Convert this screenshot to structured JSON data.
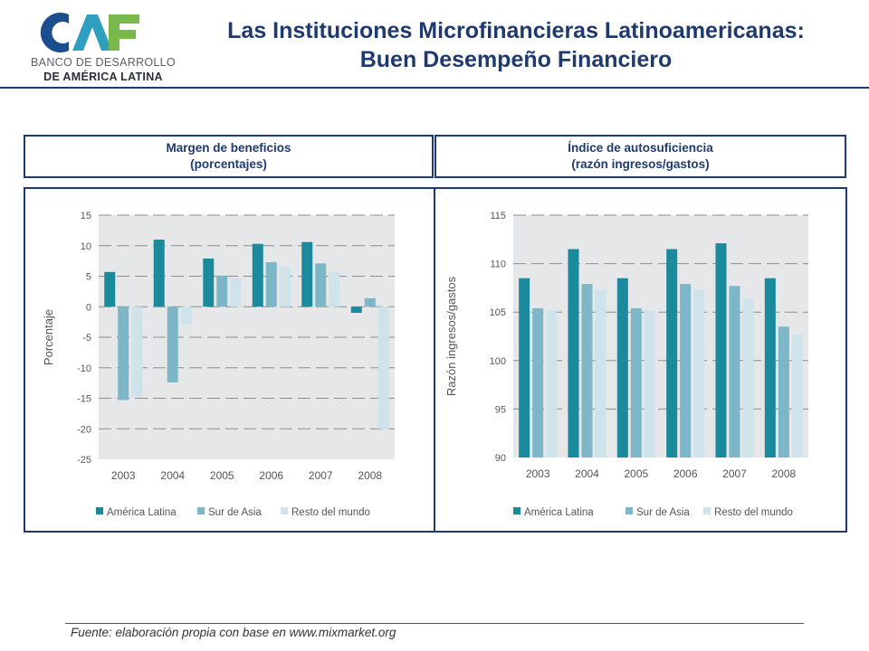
{
  "logo": {
    "name": "CAF",
    "line1": "BANCO DE DESARROLLO",
    "line2": "DE AMÉRICA LATINA",
    "colors": {
      "c": "#1a4e8f",
      "a": "#2f9fc0",
      "f": "#79b84a"
    }
  },
  "title": {
    "line1": "Las Instituciones Microfinancieras Latinoamericanas:",
    "line2": "Buen Desempeño Financiero"
  },
  "footer": {
    "source": "Fuente: elaboración propia con base en www.mixmarket.org"
  },
  "colors": {
    "america_latina": "#1b8a9c",
    "sur_de_asia": "#7db7c7",
    "resto_del_mundo": "#cfe3ea",
    "plot_bg": "#e6e7e8",
    "grid": "#8e8e8e",
    "frame": "#1e3a6e"
  },
  "chart_data": [
    {
      "type": "bar",
      "header_line1": "Margen de beneficios",
      "header_line2": "(porcentajes)",
      "ylabel": "Porcentaje",
      "ylim": [
        -25,
        15
      ],
      "yticks": [
        15,
        10,
        5,
        0,
        -5,
        -10,
        -15,
        -20,
        -25
      ],
      "grid": true,
      "legend_position": "bottom",
      "categories": [
        "2003",
        "2004",
        "2005",
        "2006",
        "2007",
        "2008"
      ],
      "series": [
        {
          "name": "América Latina",
          "color": "#1b8a9c",
          "values": [
            5.7,
            11.0,
            7.9,
            10.3,
            10.6,
            -1.0
          ]
        },
        {
          "name": "Sur de Asia",
          "color": "#7db7c7",
          "values": [
            -15.3,
            -12.4,
            5.1,
            7.3,
            7.1,
            1.4
          ]
        },
        {
          "name": "Resto del mundo",
          "color": "#cfe3ea",
          "values": [
            -14.8,
            -2.9,
            4.6,
            6.5,
            5.7,
            -20.0
          ]
        }
      ]
    },
    {
      "type": "bar",
      "header_line1": "Índice de autosuficiencia",
      "header_line2": "(razón ingresos/gastos)",
      "ylabel": "Razón ingresos/gastos",
      "ylim": [
        90,
        115
      ],
      "yticks": [
        115,
        110,
        105,
        100,
        95,
        90
      ],
      "grid": true,
      "legend_position": "bottom",
      "categories": [
        "2003",
        "2004",
        "2005",
        "2006",
        "2007",
        "2008"
      ],
      "series": [
        {
          "name": "América Latina",
          "color": "#1b8a9c",
          "values": [
            108.5,
            111.5,
            108.5,
            111.5,
            112.1,
            108.5
          ]
        },
        {
          "name": "Sur de Asia",
          "color": "#7db7c7",
          "values": [
            105.4,
            107.9,
            105.4,
            107.9,
            107.7,
            103.5
          ]
        },
        {
          "name": "Resto del mundo",
          "color": "#cfe3ea",
          "values": [
            105.2,
            107.3,
            105.2,
            107.3,
            106.4,
            102.7
          ]
        }
      ]
    }
  ]
}
